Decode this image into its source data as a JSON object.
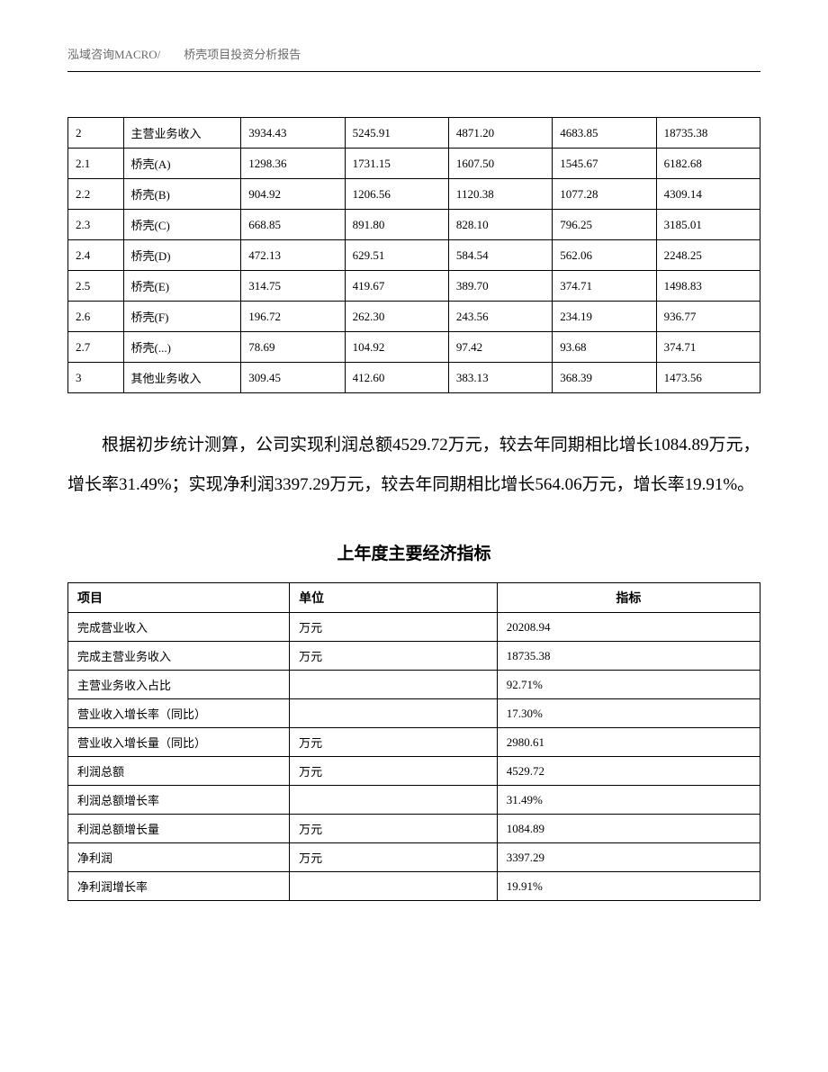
{
  "header_text": "泓域咨询MACRO/　　桥壳项目投资分析报告",
  "table1": {
    "rows": [
      [
        "2",
        "主营业务收入",
        "3934.43",
        "5245.91",
        "4871.20",
        "4683.85",
        "18735.38"
      ],
      [
        "2.1",
        "桥壳(A)",
        "1298.36",
        "1731.15",
        "1607.50",
        "1545.67",
        "6182.68"
      ],
      [
        "2.2",
        "桥壳(B)",
        "904.92",
        "1206.56",
        "1120.38",
        "1077.28",
        "4309.14"
      ],
      [
        "2.3",
        "桥壳(C)",
        "668.85",
        "891.80",
        "828.10",
        "796.25",
        "3185.01"
      ],
      [
        "2.4",
        "桥壳(D)",
        "472.13",
        "629.51",
        "584.54",
        "562.06",
        "2248.25"
      ],
      [
        "2.5",
        "桥壳(E)",
        "314.75",
        "419.67",
        "389.70",
        "374.71",
        "1498.83"
      ],
      [
        "2.6",
        "桥壳(F)",
        "196.72",
        "262.30",
        "243.56",
        "234.19",
        "936.77"
      ],
      [
        "2.7",
        "桥壳(...)",
        "78.69",
        "104.92",
        "97.42",
        "93.68",
        "374.71"
      ],
      [
        "3",
        "其他业务收入",
        "309.45",
        "412.60",
        "383.13",
        "368.39",
        "1473.56"
      ]
    ]
  },
  "paragraph_text": "根据初步统计测算，公司实现利润总额4529.72万元，较去年同期相比增长1084.89万元，增长率31.49%；实现净利润3397.29万元，较去年同期相比增长564.06万元，增长率19.91%。",
  "section_title": "上年度主要经济指标",
  "table2": {
    "headers": [
      "项目",
      "单位",
      "指标"
    ],
    "rows": [
      [
        "完成营业收入",
        "万元",
        "20208.94"
      ],
      [
        "完成主营业务收入",
        "万元",
        "18735.38"
      ],
      [
        "主营业务收入占比",
        "",
        "92.71%"
      ],
      [
        "营业收入增长率（同比）",
        "",
        "17.30%"
      ],
      [
        "营业收入增长量（同比）",
        "万元",
        "2980.61"
      ],
      [
        "利润总额",
        "万元",
        "4529.72"
      ],
      [
        "利润总额增长率",
        "",
        "31.49%"
      ],
      [
        "利润总额增长量",
        "万元",
        "1084.89"
      ],
      [
        "净利润",
        "万元",
        "3397.29"
      ],
      [
        "净利润增长率",
        "",
        "19.91%"
      ]
    ]
  }
}
